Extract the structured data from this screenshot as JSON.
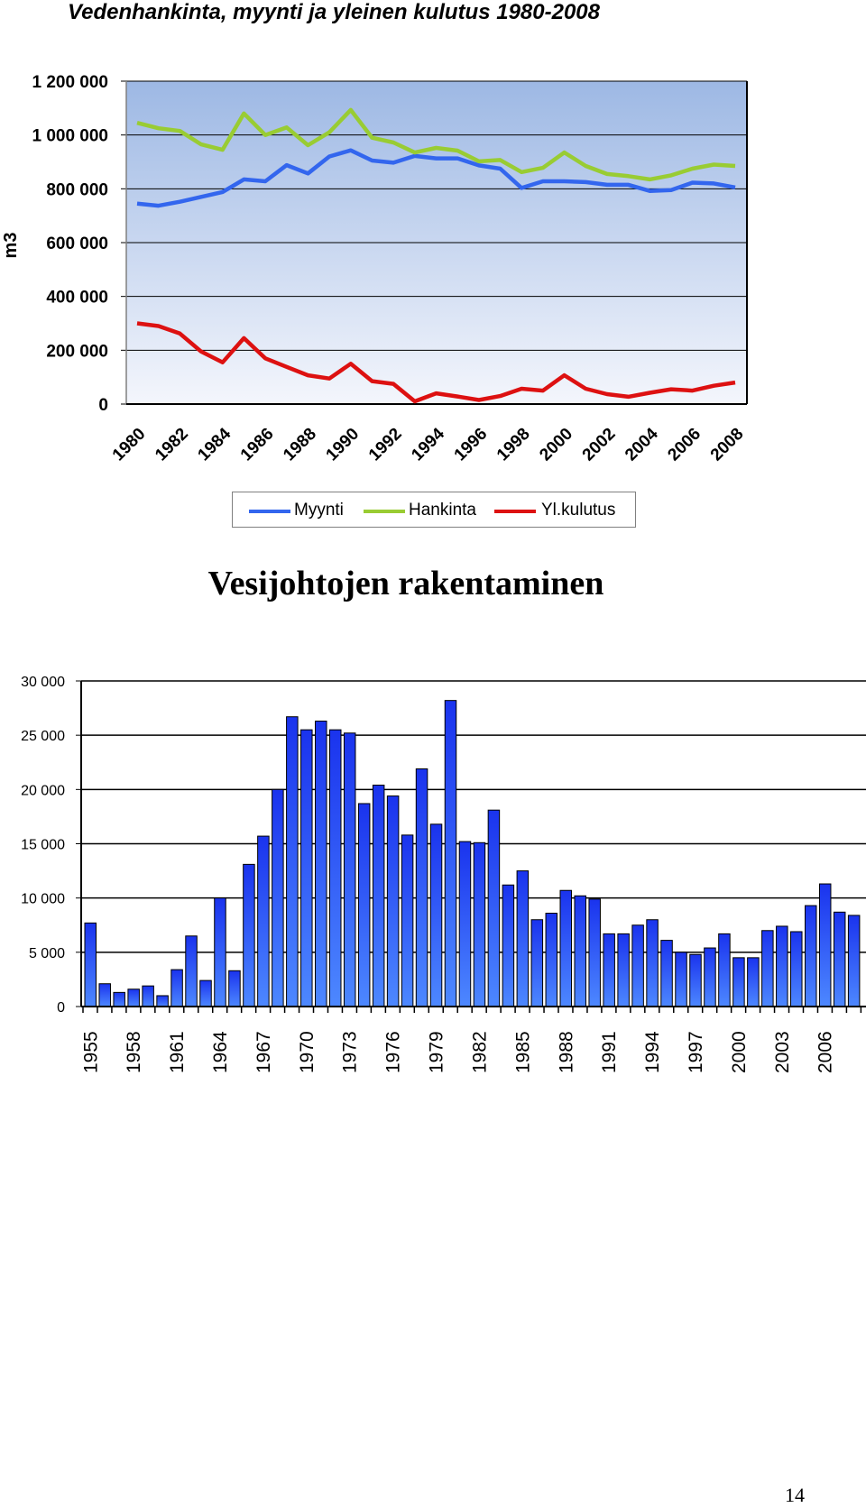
{
  "page_number": "14",
  "chart_data": [
    {
      "type": "line",
      "title": "Vedenhankinta, myynti ja yleinen kulutus 1980-2008",
      "ylabel": "m3",
      "xlabel": "",
      "ylim": [
        0,
        1200000
      ],
      "yticks": [
        0,
        200000,
        400000,
        600000,
        800000,
        1000000,
        1200000
      ],
      "ytick_labels": [
        "0",
        "200 000",
        "400 000",
        "600 000",
        "800 000",
        "1 000 000",
        "1 200 000"
      ],
      "x": [
        1980,
        1981,
        1982,
        1983,
        1984,
        1985,
        1986,
        1987,
        1988,
        1989,
        1990,
        1991,
        1992,
        1993,
        1994,
        1995,
        1996,
        1997,
        1998,
        1999,
        2000,
        2001,
        2002,
        2003,
        2004,
        2005,
        2006,
        2007,
        2008
      ],
      "xtick_labels": [
        "1980",
        "1982",
        "1984",
        "1986",
        "1988",
        "1990",
        "1992",
        "1994",
        "1996",
        "1998",
        "2000",
        "2002",
        "2004",
        "2006",
        "2008"
      ],
      "grid": true,
      "legend_position": "bottom",
      "series": [
        {
          "name": "Myynti",
          "color": "#3366ee",
          "values": [
            745000,
            737000,
            752000,
            770000,
            788000,
            835000,
            828000,
            888000,
            857000,
            920000,
            943000,
            905000,
            897000,
            922000,
            913000,
            913000,
            887000,
            875000,
            803000,
            828000,
            828000,
            825000,
            815000,
            815000,
            792000,
            795000,
            823000,
            820000,
            805000
          ]
        },
        {
          "name": "Hankinta",
          "color": "#99cc33",
          "values": [
            1045000,
            1025000,
            1015000,
            965000,
            945000,
            1080000,
            1000000,
            1028000,
            962000,
            1010000,
            1093000,
            990000,
            972000,
            935000,
            952000,
            942000,
            902000,
            907000,
            862000,
            878000,
            935000,
            885000,
            855000,
            847000,
            835000,
            850000,
            875000,
            890000,
            885000
          ]
        },
        {
          "name": "Yl.kulutus",
          "color": "#dd1111",
          "values": [
            300000,
            290000,
            262000,
            195000,
            155000,
            245000,
            170000,
            138000,
            107000,
            95000,
            150000,
            85000,
            75000,
            10000,
            40000,
            28000,
            15000,
            30000,
            57000,
            50000,
            107000,
            57000,
            37000,
            27000,
            42000,
            55000,
            50000,
            68000,
            80000
          ]
        }
      ]
    },
    {
      "type": "bar",
      "title": "Vesijohtojen rakentaminen",
      "xlabel": "",
      "ylabel": "",
      "ylim": [
        0,
        30000
      ],
      "yticks": [
        0,
        5000,
        10000,
        15000,
        20000,
        25000,
        30000
      ],
      "ytick_labels": [
        "0",
        "5 000",
        "10 000",
        "15 000",
        "20 000",
        "25 000",
        "30 000"
      ],
      "categories": [
        1955,
        1956,
        1957,
        1958,
        1959,
        1960,
        1961,
        1962,
        1963,
        1964,
        1965,
        1966,
        1967,
        1968,
        1969,
        1970,
        1971,
        1972,
        1973,
        1974,
        1975,
        1976,
        1977,
        1978,
        1979,
        1980,
        1981,
        1982,
        1983,
        1984,
        1985,
        1986,
        1987,
        1988,
        1989,
        1990,
        1991,
        1992,
        1993,
        1994,
        1995,
        1996,
        1997,
        1998,
        1999,
        2000,
        2001,
        2002,
        2003,
        2004,
        2005,
        2006,
        2007,
        2008
      ],
      "xtick_labels": [
        "1955",
        "1958",
        "1961",
        "1964",
        "1967",
        "1970",
        "1973",
        "1976",
        "1979",
        "1982",
        "1985",
        "1988",
        "1991",
        "1994",
        "1997",
        "2000",
        "2003",
        "2006"
      ],
      "grid": true,
      "color": "#2244ee",
      "values": [
        7700,
        2100,
        1300,
        1600,
        1900,
        1000,
        3400,
        6500,
        2400,
        10000,
        3300,
        13100,
        15700,
        20000,
        26700,
        25500,
        26300,
        25500,
        25200,
        18700,
        20400,
        19400,
        15800,
        21900,
        16800,
        28200,
        15200,
        15100,
        18100,
        11200,
        12500,
        8000,
        8600,
        10700,
        10200,
        9900,
        6700,
        6700,
        7500,
        8000,
        6100,
        5000,
        4800,
        5400,
        6700,
        4500,
        4500,
        7000,
        7400,
        6900,
        9300,
        11300,
        8700,
        8400
      ]
    }
  ]
}
